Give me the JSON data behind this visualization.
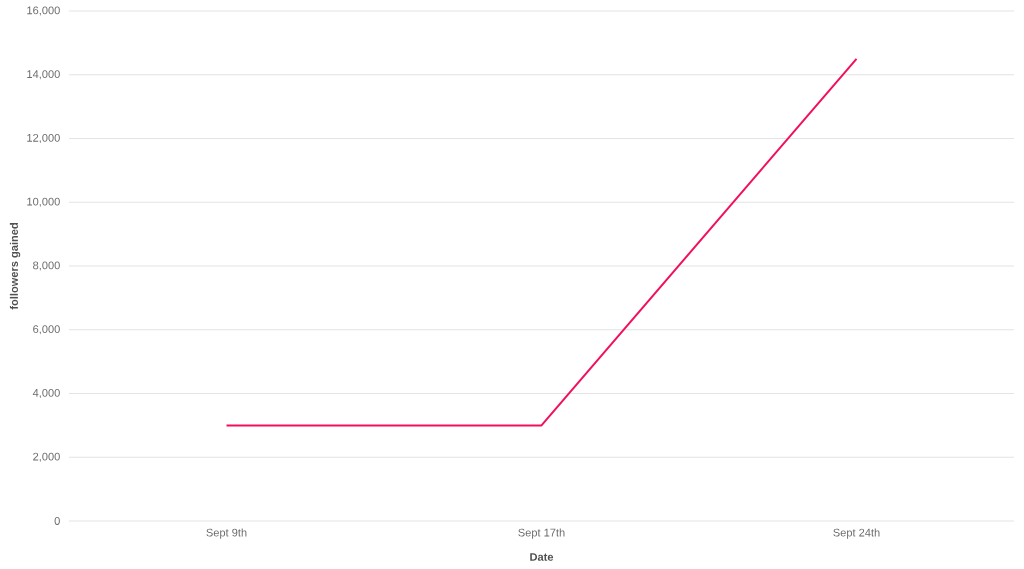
{
  "chart_data": {
    "type": "line",
    "xlabel": "Date",
    "ylabel": "followers gained",
    "categories": [
      "Sept 9th",
      "Sept 17th",
      "Sept 24th"
    ],
    "series": [
      {
        "color": "#f2105a",
        "values": [
          3000,
          3000,
          14500
        ]
      }
    ],
    "ylim": [
      0,
      16000
    ],
    "yticks": [
      0,
      {
        "value": 2000,
        "label": "2,000"
      },
      {
        "value": 4000,
        "label": "4,000"
      },
      {
        "value": 6000,
        "label": "6,000"
      },
      {
        "value": 8000,
        "label": "8,000"
      },
      {
        "value": 10000,
        "label": "10,000"
      },
      {
        "value": 12000,
        "label": "12,000"
      },
      {
        "value": 14000,
        "label": "14,000"
      },
      {
        "value": 16000,
        "label": "16,000"
      }
    ],
    "grid": "y",
    "marker": "none",
    "line_style": "solid"
  }
}
